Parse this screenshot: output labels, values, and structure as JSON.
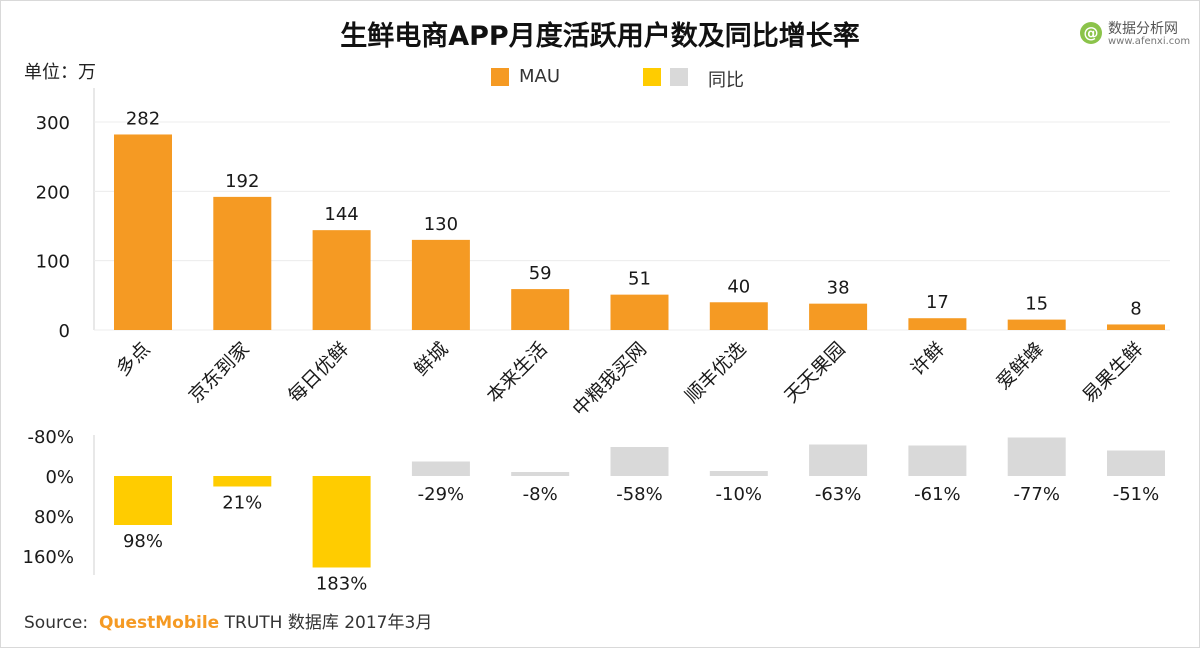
{
  "title": "生鲜电商APP月度活跃用户数及同比增长率",
  "unit_label": "单位：万",
  "logo": {
    "name": "数据分析网",
    "url": "www.afenxi.com",
    "mark": "@"
  },
  "legend": {
    "mau": "MAU",
    "yoy": "同比"
  },
  "colors": {
    "mau": "#f59a23",
    "yoy_positive": "#ffcc00",
    "yoy_negative": "#d9d9d9",
    "brand": "#f59a23"
  },
  "source": {
    "prefix": "Source:",
    "brand": "QuestMobile",
    "rest": "TRUTH 数据库 2017年3月"
  },
  "chart_data": [
    {
      "type": "bar",
      "categories": [
        "多点",
        "京东到家",
        "每日优鲜",
        "鲜城",
        "本来生活",
        "中粮我买网",
        "顺丰优选",
        "天天果园",
        "许鲜",
        "爱鲜蜂",
        "易果生鲜"
      ],
      "series": [
        {
          "name": "MAU",
          "values": [
            282,
            192,
            144,
            130,
            59,
            51,
            40,
            38,
            17,
            15,
            8
          ]
        }
      ],
      "ylim": [
        0,
        300
      ],
      "yticks": [
        0,
        100,
        200,
        300
      ],
      "tick_labels": [
        "0",
        "100",
        "200",
        "300"
      ],
      "data_labels": [
        "282",
        "192",
        "144",
        "130",
        "59",
        "51",
        "40",
        "38",
        "17",
        "15",
        "8"
      ]
    },
    {
      "type": "bar",
      "categories": [
        "多点",
        "京东到家",
        "每日优鲜",
        "鲜城",
        "本来生活",
        "中粮我买网",
        "顺丰优选",
        "天天果园",
        "许鲜",
        "爱鲜蜂",
        "易果生鲜"
      ],
      "series": [
        {
          "name": "同比",
          "values": [
            98,
            21,
            183,
            -29,
            -8,
            -58,
            -10,
            -63,
            -61,
            -77,
            -51
          ]
        }
      ],
      "ylim": [
        -80,
        160
      ],
      "axis_inverted": true,
      "yticks": [
        -80,
        0,
        80,
        160
      ],
      "tick_labels": [
        "-80%",
        "0%",
        "80%",
        "160%"
      ],
      "data_labels": [
        "98%",
        "21%",
        "183%",
        "-29%",
        "-8%",
        "-58%",
        "-10%",
        "-63%",
        "-61%",
        "-77%",
        "-51%"
      ]
    }
  ]
}
